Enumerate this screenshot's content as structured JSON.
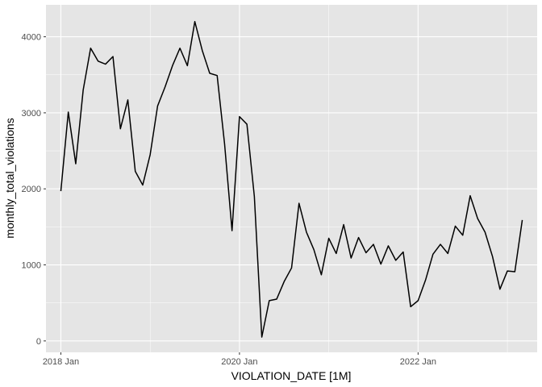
{
  "chart_data": {
    "type": "line",
    "xlabel": "VIOLATION_DATE [1M]",
    "ylabel": "monthly_total_violations",
    "x_tick_labels": [
      "2018 Jan",
      "2020 Jan",
      "2022 Jan"
    ],
    "y_ticks": [
      0,
      1000,
      2000,
      3000,
      4000
    ],
    "x_start": "2018-01",
    "x_frequency": "monthly",
    "x_range": [
      "2017-11",
      "2023-05"
    ],
    "ylim": [
      -150,
      4420
    ],
    "grid": true,
    "background": "#e5e5e5",
    "grid_color": "#ffffff",
    "line_color": "#000000",
    "series": [
      {
        "x": [
          "2018-01",
          "2018-02",
          "2018-03",
          "2018-04",
          "2018-05",
          "2018-06",
          "2018-07",
          "2018-08",
          "2018-09",
          "2018-10",
          "2018-11",
          "2018-12",
          "2019-01",
          "2019-02",
          "2019-03",
          "2019-04",
          "2019-05",
          "2019-06",
          "2019-07",
          "2019-08",
          "2019-09",
          "2019-10",
          "2019-11",
          "2019-12",
          "2020-01",
          "2020-02",
          "2020-03",
          "2020-04",
          "2020-05",
          "2020-06",
          "2020-07",
          "2020-08",
          "2020-09",
          "2020-10",
          "2020-11",
          "2020-12",
          "2021-01",
          "2021-02",
          "2021-03",
          "2021-04",
          "2021-05",
          "2021-06",
          "2021-07",
          "2021-08",
          "2021-09",
          "2021-10",
          "2021-11",
          "2021-12",
          "2022-01",
          "2022-02",
          "2022-03",
          "2022-04",
          "2022-05",
          "2022-06",
          "2022-07",
          "2022-08",
          "2022-09",
          "2022-10",
          "2022-11",
          "2022-12",
          "2023-01",
          "2023-02",
          "2023-03"
        ],
        "values": [
          1970,
          3010,
          2330,
          3300,
          3850,
          3680,
          3640,
          3740,
          2790,
          3170,
          2230,
          2050,
          2450,
          3090,
          3340,
          3620,
          3850,
          3620,
          4200,
          3820,
          3520,
          3490,
          2590,
          1450,
          2950,
          2850,
          1900,
          50,
          530,
          550,
          780,
          960,
          1810,
          1430,
          1200,
          870,
          1350,
          1150,
          1530,
          1090,
          1360,
          1160,
          1270,
          1010,
          1250,
          1060,
          1170,
          450,
          530,
          800,
          1140,
          1270,
          1150,
          1510,
          1390,
          1910,
          1610,
          1430,
          1110,
          680,
          920,
          910,
          1590
        ]
      }
    ]
  }
}
